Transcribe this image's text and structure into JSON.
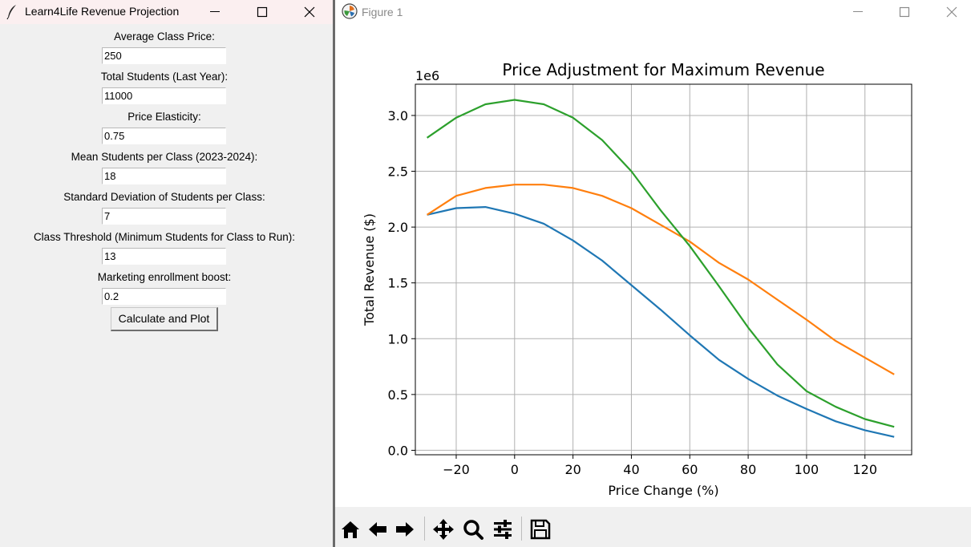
{
  "tk_window": {
    "title": "Learn4Life Revenue Projection",
    "fields": [
      {
        "label": "Average Class Price:",
        "value": "250"
      },
      {
        "label": "Total Students (Last Year):",
        "value": "11000"
      },
      {
        "label": "Price Elasticity:",
        "value": "0.75"
      },
      {
        "label": "Mean Students per Class (2023-2024):",
        "value": "18"
      },
      {
        "label": "Standard Deviation of Students per Class:",
        "value": "7"
      },
      {
        "label": "Class Threshold (Minimum Students for Class to Run):",
        "value": "13"
      },
      {
        "label": "Marketing enrollment boost:",
        "value": "0.2"
      }
    ],
    "button_label": "Calculate and Plot"
  },
  "figure_window": {
    "title": "Figure 1",
    "toolbar": [
      "home-icon",
      "back-icon",
      "forward-icon",
      "pan-icon",
      "zoom-icon",
      "configure-subplots-icon",
      "save-icon"
    ]
  },
  "chart_data": {
    "type": "line",
    "title": "Price Adjustment for Maximum Revenue",
    "xlabel": "Price Change (%)",
    "ylabel": "Total Revenue ($)",
    "offset_text": "1e6",
    "xlim": [
      -34,
      136
    ],
    "ylim": [
      -0.04,
      3.28
    ],
    "xticks": [
      -20,
      0,
      20,
      40,
      60,
      80,
      100,
      120
    ],
    "xtick_labels": [
      "−20",
      "0",
      "20",
      "40",
      "60",
      "80",
      "100",
      "120"
    ],
    "yticks": [
      0.0,
      0.5,
      1.0,
      1.5,
      2.0,
      2.5,
      3.0
    ],
    "ytick_labels": [
      "0.0",
      "0.5",
      "1.0",
      "1.5",
      "2.0",
      "2.5",
      "3.0"
    ],
    "grid": true,
    "x": [
      -30,
      -20,
      -10,
      0,
      10,
      20,
      30,
      40,
      50,
      60,
      70,
      80,
      90,
      100,
      110,
      120,
      130
    ],
    "series": [
      {
        "color": "#1f77b4",
        "values": [
          2.11,
          2.17,
          2.18,
          2.12,
          2.03,
          1.88,
          1.7,
          1.48,
          1.26,
          1.03,
          0.81,
          0.64,
          0.49,
          0.37,
          0.26,
          0.18,
          0.12
        ]
      },
      {
        "color": "#ff7f0e",
        "values": [
          2.11,
          2.28,
          2.35,
          2.38,
          2.38,
          2.35,
          2.28,
          2.17,
          2.02,
          1.87,
          1.68,
          1.53,
          1.35,
          1.17,
          0.98,
          0.83,
          0.68
        ]
      },
      {
        "color": "#2ca02c",
        "values": [
          2.8,
          2.98,
          3.1,
          3.14,
          3.1,
          2.98,
          2.78,
          2.5,
          2.15,
          1.83,
          1.47,
          1.1,
          0.77,
          0.53,
          0.39,
          0.28,
          0.21
        ]
      }
    ]
  }
}
